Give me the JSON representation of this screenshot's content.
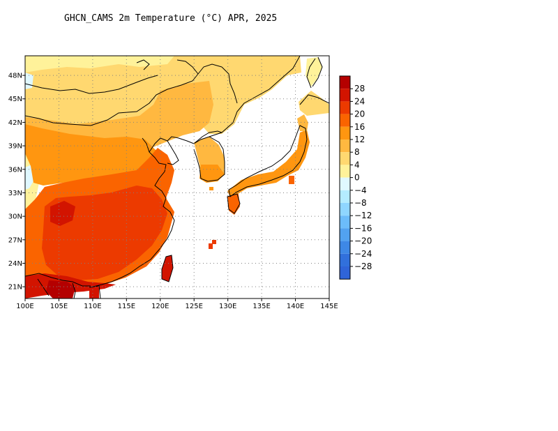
{
  "title": "GHCN_CAMS 2m Temperature (°C) APR, 2025",
  "map": {
    "lon_range": [
      100,
      145
    ],
    "lat_range": [
      19.5,
      50.5
    ],
    "lon_ticks": [
      {
        "value": 100,
        "label": "100E"
      },
      {
        "value": 105,
        "label": "105E"
      },
      {
        "value": 110,
        "label": "110E"
      },
      {
        "value": 115,
        "label": "115E"
      },
      {
        "value": 120,
        "label": "120E"
      },
      {
        "value": 125,
        "label": "125E"
      },
      {
        "value": 130,
        "label": "130E"
      },
      {
        "value": 135,
        "label": "135E"
      },
      {
        "value": 140,
        "label": "140E"
      },
      {
        "value": 145,
        "label": "145E"
      }
    ],
    "lat_ticks": [
      {
        "value": 21,
        "label": "21N"
      },
      {
        "value": 24,
        "label": "24N"
      },
      {
        "value": 27,
        "label": "27N"
      },
      {
        "value": 30,
        "label": "30N"
      },
      {
        "value": 33,
        "label": "33N"
      },
      {
        "value": 36,
        "label": "36N"
      },
      {
        "value": 39,
        "label": "39N"
      },
      {
        "value": 42,
        "label": "42N"
      },
      {
        "value": 45,
        "label": "45N"
      },
      {
        "value": 48,
        "label": "48N"
      }
    ],
    "grid": true,
    "grid_style": "dotted"
  },
  "colorbar": {
    "placement": "right",
    "levels": [
      {
        "label": "28",
        "color": "#b40000"
      },
      {
        "label": "24",
        "color": "#d21400"
      },
      {
        "label": "20",
        "color": "#ec3a00"
      },
      {
        "label": "16",
        "color": "#fa6400"
      },
      {
        "label": "12",
        "color": "#ff9610"
      },
      {
        "label": "8",
        "color": "#ffb840"
      },
      {
        "label": "4",
        "color": "#ffd870"
      },
      {
        "label": "0",
        "color": "#fff29a"
      },
      {
        "label": "-4",
        "color": "#e0f8ff"
      },
      {
        "label": "-8",
        "color": "#b4ecff"
      },
      {
        "label": "-12",
        "color": "#8fd6ff"
      },
      {
        "label": "-16",
        "color": "#6cbcfa"
      },
      {
        "label": "-20",
        "color": "#52a2f0"
      },
      {
        "label": "-24",
        "color": "#3e88e6"
      },
      {
        "label": "-28",
        "color": "#3170dc"
      }
    ],
    "extra_bottom_color": "#2f64d8"
  },
  "colors": {
    "ocean": "#ffffff",
    "coastline": "#000000",
    "grid": "#808080"
  }
}
